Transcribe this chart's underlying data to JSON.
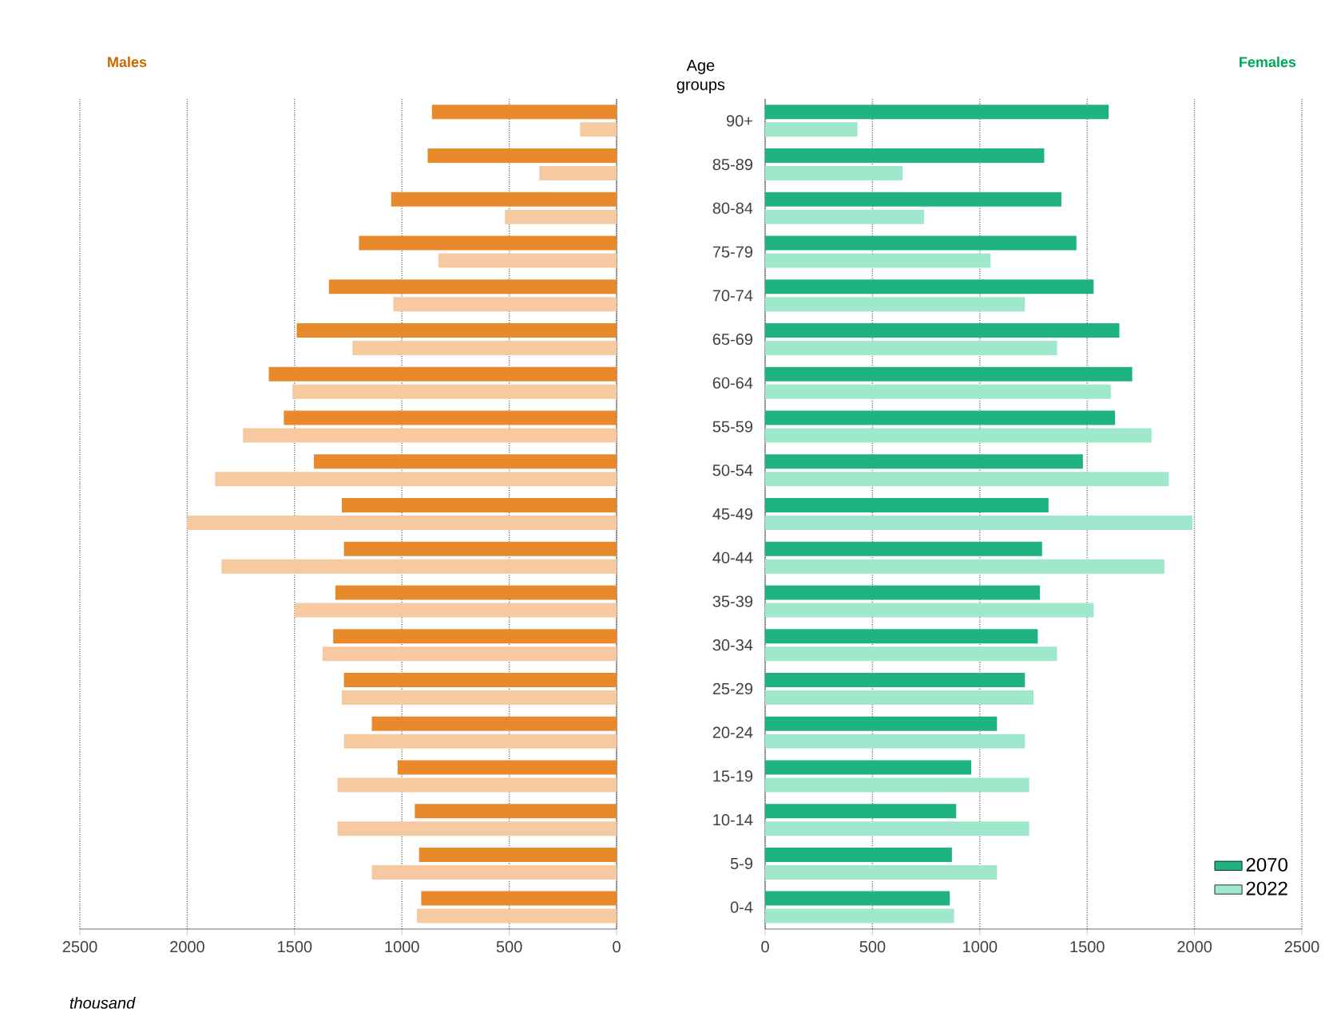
{
  "chart_data": [
    {
      "type": "bar",
      "orientation": "horizontal",
      "title": "Males",
      "categories": [
        null,
        null,
        null,
        null,
        null,
        null,
        null,
        null,
        null,
        null,
        null,
        null,
        null,
        null,
        null,
        null,
        null,
        null,
        null
      ],
      "series": [
        {
          "color": "#e8892c",
          "values": [
            860,
            880,
            1050,
            1200,
            1340,
            1490,
            1620,
            1550,
            1410,
            1280,
            1270,
            1310,
            1320,
            1270,
            1140,
            1020,
            940,
            920,
            910
          ]
        },
        {
          "color": "#f6c9a0",
          "values": [
            170,
            360,
            520,
            830,
            1040,
            1230,
            1510,
            1740,
            1870,
            2000,
            1840,
            1500,
            1370,
            1280,
            1270,
            1300,
            1300,
            1140,
            930
          ]
        }
      ],
      "xlim": [
        2500,
        0
      ],
      "xticks": [
        0,
        500,
        1000,
        1500,
        2000,
        2500
      ],
      "grid": "x",
      "tick_labels": "x",
      "annotations": [
        "thousand"
      ]
    },
    {
      "type": "bar",
      "orientation": "horizontal",
      "title": "Females",
      "ylabel": "Age groups",
      "categories": [
        "90+",
        "85-89",
        "80-84",
        "75-79",
        "70-74",
        "65-69",
        "60-64",
        "55-59",
        "50-54",
        "45-49",
        "40-44",
        "35-39",
        "30-34",
        "25-29",
        "20-24",
        "15-19",
        "10-14",
        "5-9",
        "0-4"
      ],
      "series": [
        {
          "name": "2070",
          "color": "#1fb383",
          "values": [
            1600,
            1300,
            1380,
            1450,
            1530,
            1650,
            1710,
            1630,
            1480,
            1320,
            1290,
            1280,
            1270,
            1210,
            1080,
            960,
            890,
            870,
            860
          ]
        },
        {
          "name": "2022",
          "color": "#9fe8cc",
          "values": [
            430,
            640,
            740,
            1050,
            1210,
            1360,
            1610,
            1800,
            1880,
            1990,
            1860,
            1530,
            1360,
            1250,
            1210,
            1230,
            1230,
            1080,
            880
          ]
        }
      ],
      "xlim": [
        0,
        2500
      ],
      "xticks": [
        0,
        500,
        1000,
        1500,
        2000,
        2500
      ],
      "grid": "x",
      "legend": "bottom right"
    }
  ]
}
